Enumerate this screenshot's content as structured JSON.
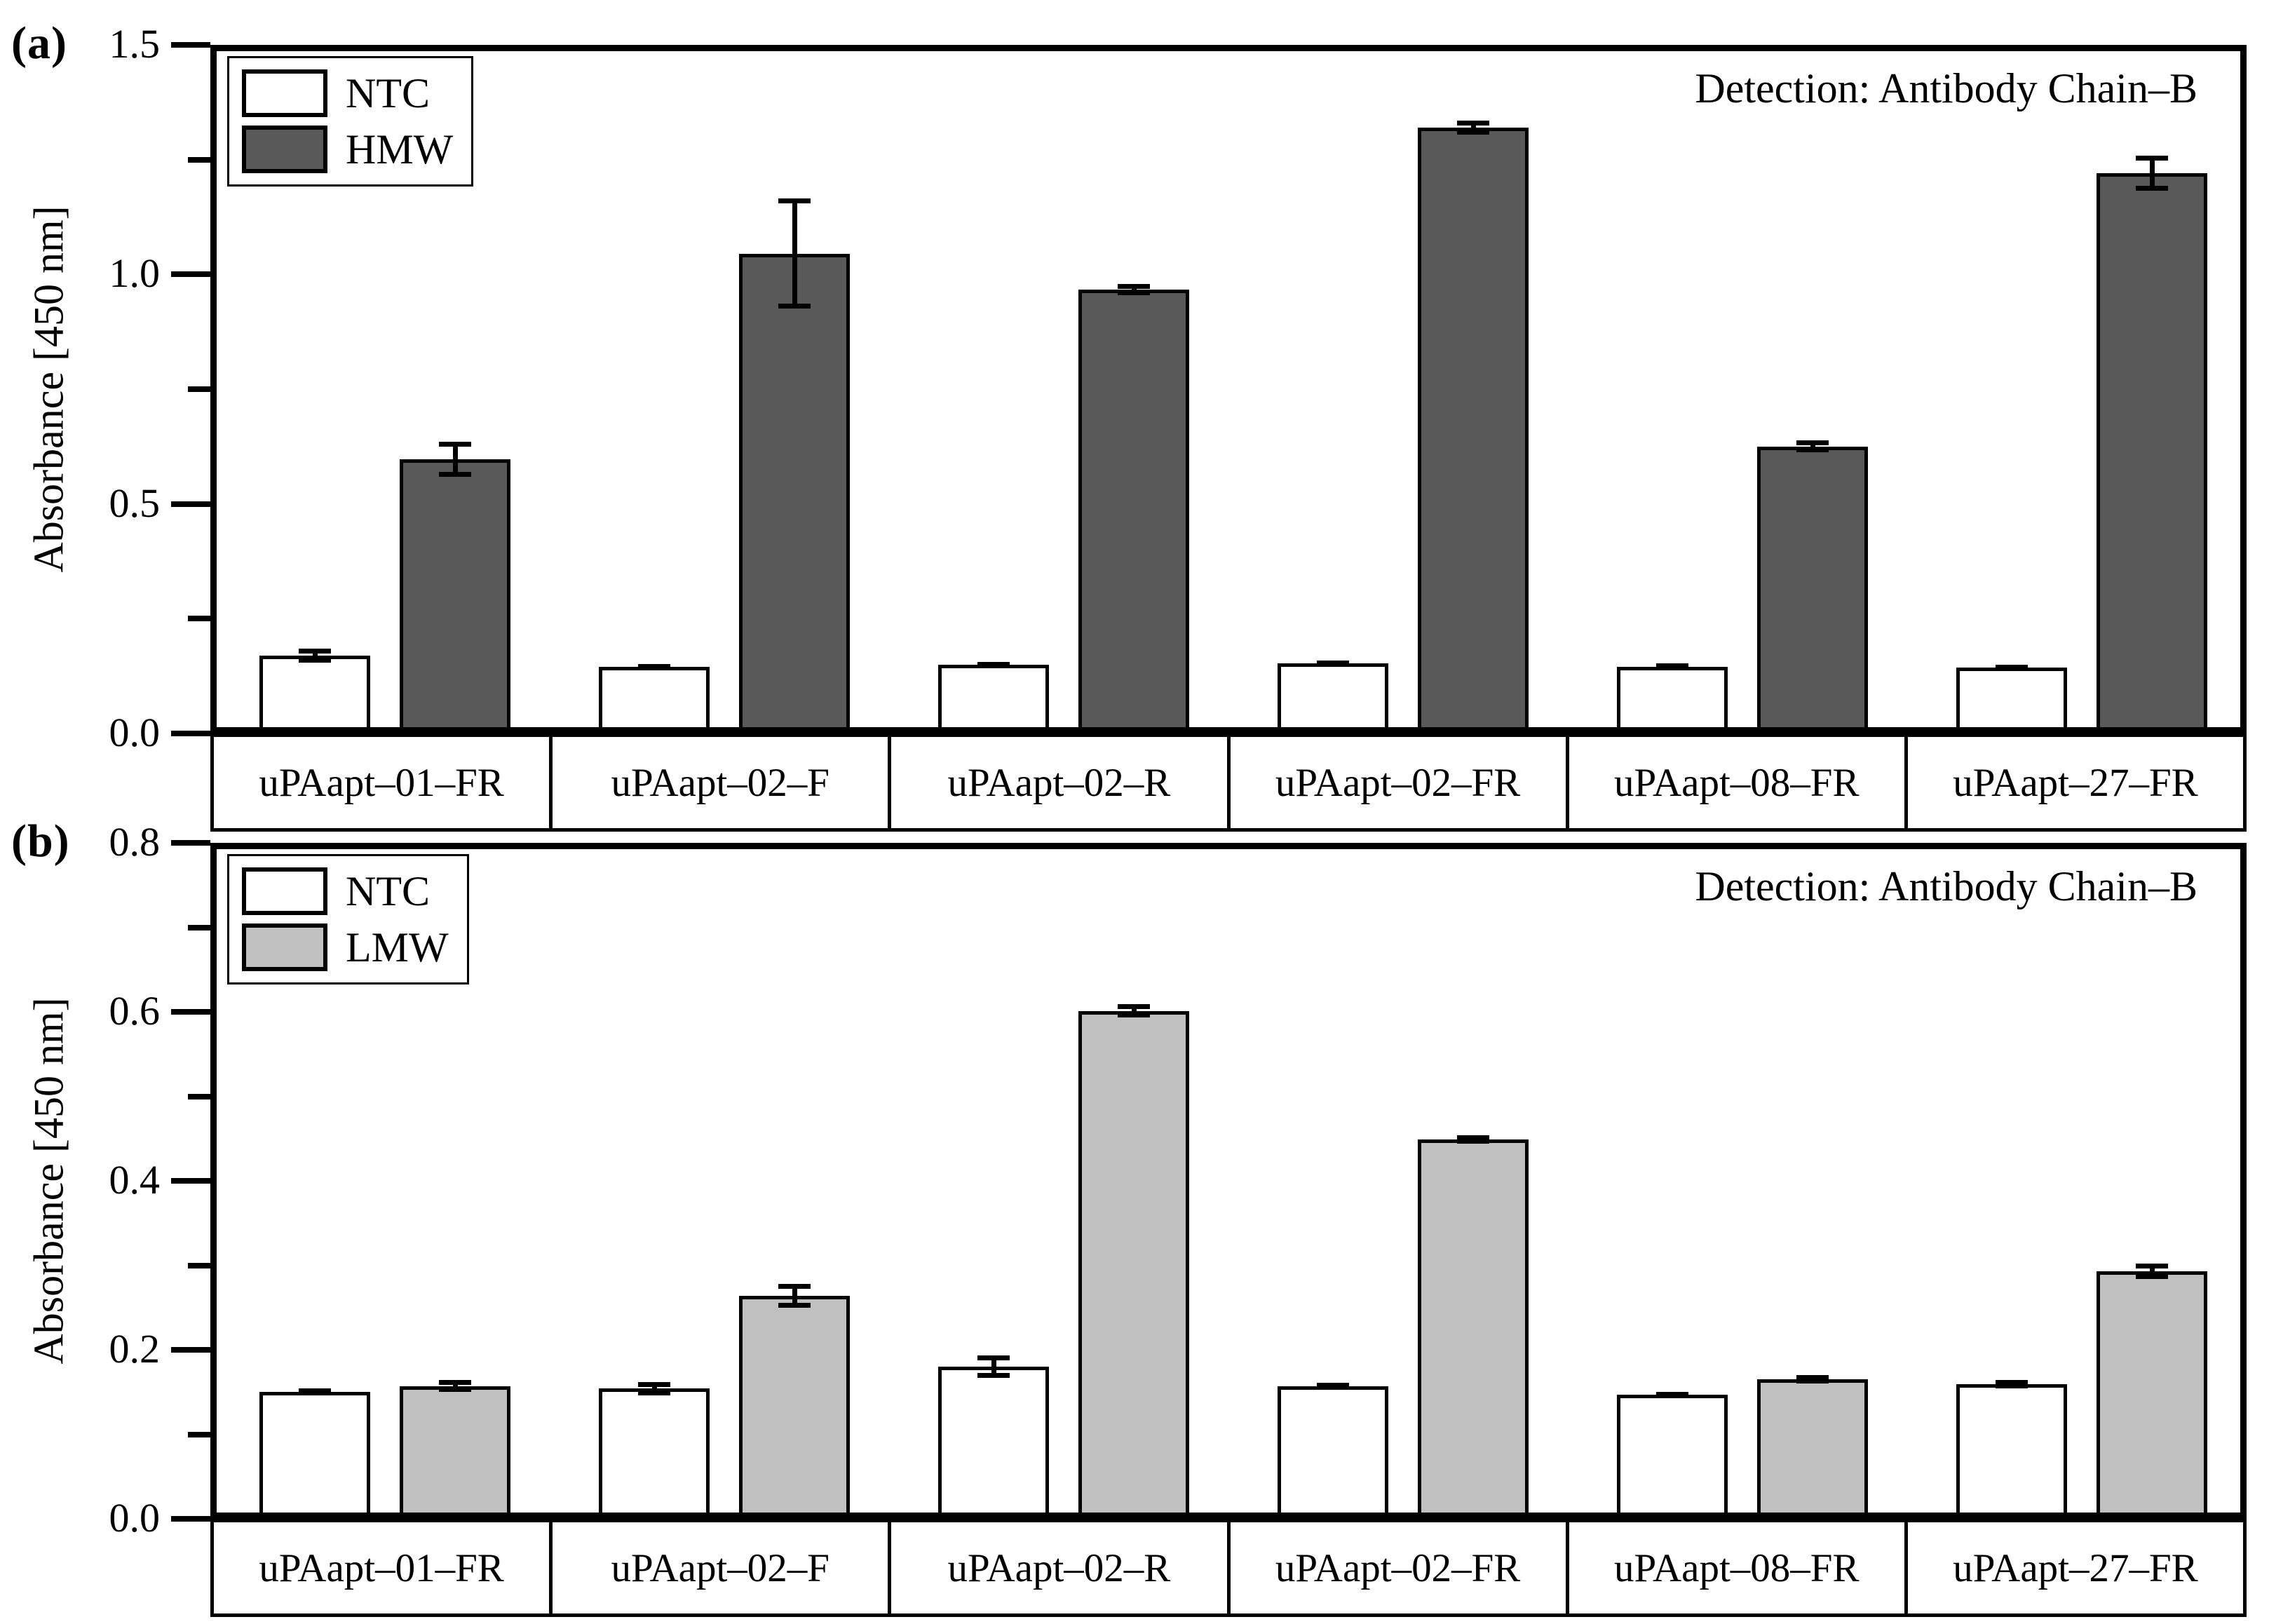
{
  "figure": {
    "panels": [
      {
        "letter": "(a)"
      },
      {
        "letter": "(b)"
      }
    ]
  },
  "colors": {
    "ntc": "#ffffff",
    "hmw": "#595959",
    "lmw": "#c0c0c0",
    "axis": "#000000"
  },
  "chart_data": [
    {
      "type": "bar",
      "panel_letter": "(a)",
      "title": "Detection: Antibody Chain–B",
      "ylabel": "Absorbance [450 nm]",
      "categories": [
        "uPAapt–01–FR",
        "uPAapt–02–F",
        "uPAapt–02–R",
        "uPAapt–02–FR",
        "uPAapt–08–FR",
        "uPAapt–27–FR"
      ],
      "series": [
        {
          "name": "NTC",
          "color": "#ffffff",
          "values": [
            0.17,
            0.145,
            0.15,
            0.152,
            0.145,
            0.144
          ],
          "errors": [
            0.015,
            0.005,
            0.006,
            0.007,
            0.007,
            0.006
          ]
        },
        {
          "name": "HMW",
          "color": "#595959",
          "values": [
            0.597,
            1.045,
            0.967,
            1.32,
            0.625,
            1.22
          ],
          "errors": [
            0.038,
            0.12,
            0.012,
            0.015,
            0.013,
            0.038
          ]
        }
      ],
      "ylim": [
        0,
        1.5
      ],
      "ytick_labels": [
        "0.0",
        "0.5",
        "1.0",
        "1.5"
      ],
      "ytick_interval": 0.5,
      "yminor_interval": 0.25,
      "legend_position": "top-left",
      "grid": false
    },
    {
      "type": "bar",
      "panel_letter": "(b)",
      "title": "Detection: Antibody Chain–B",
      "ylabel": "Absorbance [450 nm]",
      "categories": [
        "uPAapt–01–FR",
        "uPAapt–02–F",
        "uPAapt–02–R",
        "uPAapt–02–FR",
        "uPAapt–08–FR",
        "uPAapt–27–FR"
      ],
      "series": [
        {
          "name": "NTC",
          "color": "#ffffff",
          "values": [
            0.15,
            0.154,
            0.18,
            0.157,
            0.147,
            0.159
          ],
          "errors": [
            0.004,
            0.008,
            0.013,
            0.004,
            0.003,
            0.005
          ]
        },
        {
          "name": "LMW",
          "color": "#c0c0c0",
          "values": [
            0.157,
            0.264,
            0.601,
            0.449,
            0.165,
            0.293
          ],
          "errors": [
            0.007,
            0.014,
            0.008,
            0.005,
            0.005,
            0.009
          ]
        }
      ],
      "ylim": [
        0,
        0.8
      ],
      "ytick_labels": [
        "0.0",
        "0.2",
        "0.4",
        "0.6",
        "0.8"
      ],
      "ytick_interval": 0.2,
      "yminor_interval": 0.1,
      "legend_position": "top-left",
      "grid": false
    }
  ]
}
